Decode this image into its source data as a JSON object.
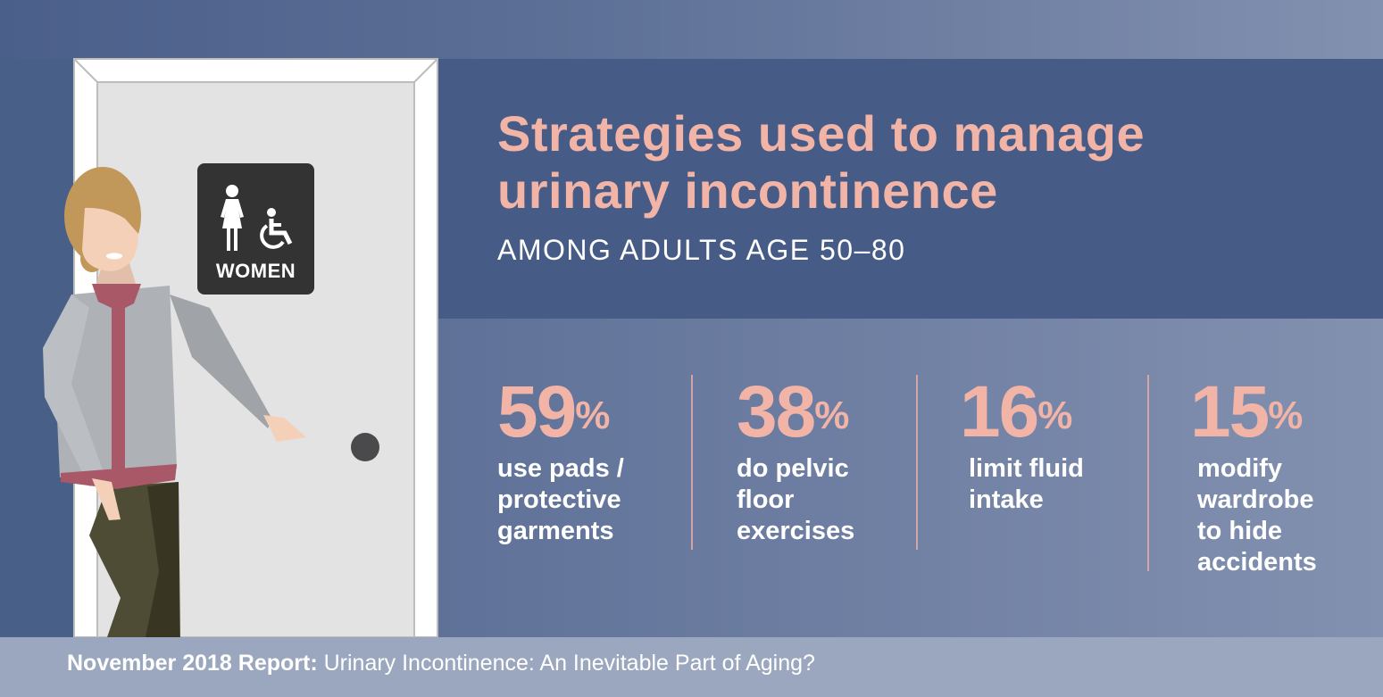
{
  "title": {
    "line1": "Strategies used to manage",
    "line2": "urinary incontinence"
  },
  "subtitle": "AMONG ADULTS AGE 50–80",
  "sign": {
    "label": "WOMEN",
    "icons": [
      "woman-icon",
      "wheelchair-icon"
    ]
  },
  "stats": [
    {
      "value": "59",
      "unit": "%",
      "label": [
        "use pads /",
        "protective",
        "garments"
      ]
    },
    {
      "value": "38",
      "unit": "%",
      "label": [
        "do pelvic",
        "floor",
        "exercises"
      ]
    },
    {
      "value": "16",
      "unit": "%",
      "label": [
        "limit fluid",
        "intake"
      ]
    },
    {
      "value": "15",
      "unit": "%",
      "label": [
        "modify",
        "wardrobe",
        "to hide",
        "accidents"
      ]
    }
  ],
  "footer": {
    "bold": "November 2018 Report:",
    "text": " Urinary Incontinence: An Inevitable Part of Aging?"
  },
  "colors": {
    "accent": "#f2b4a6",
    "header": "#465c86",
    "footer": "#9ba7be"
  }
}
